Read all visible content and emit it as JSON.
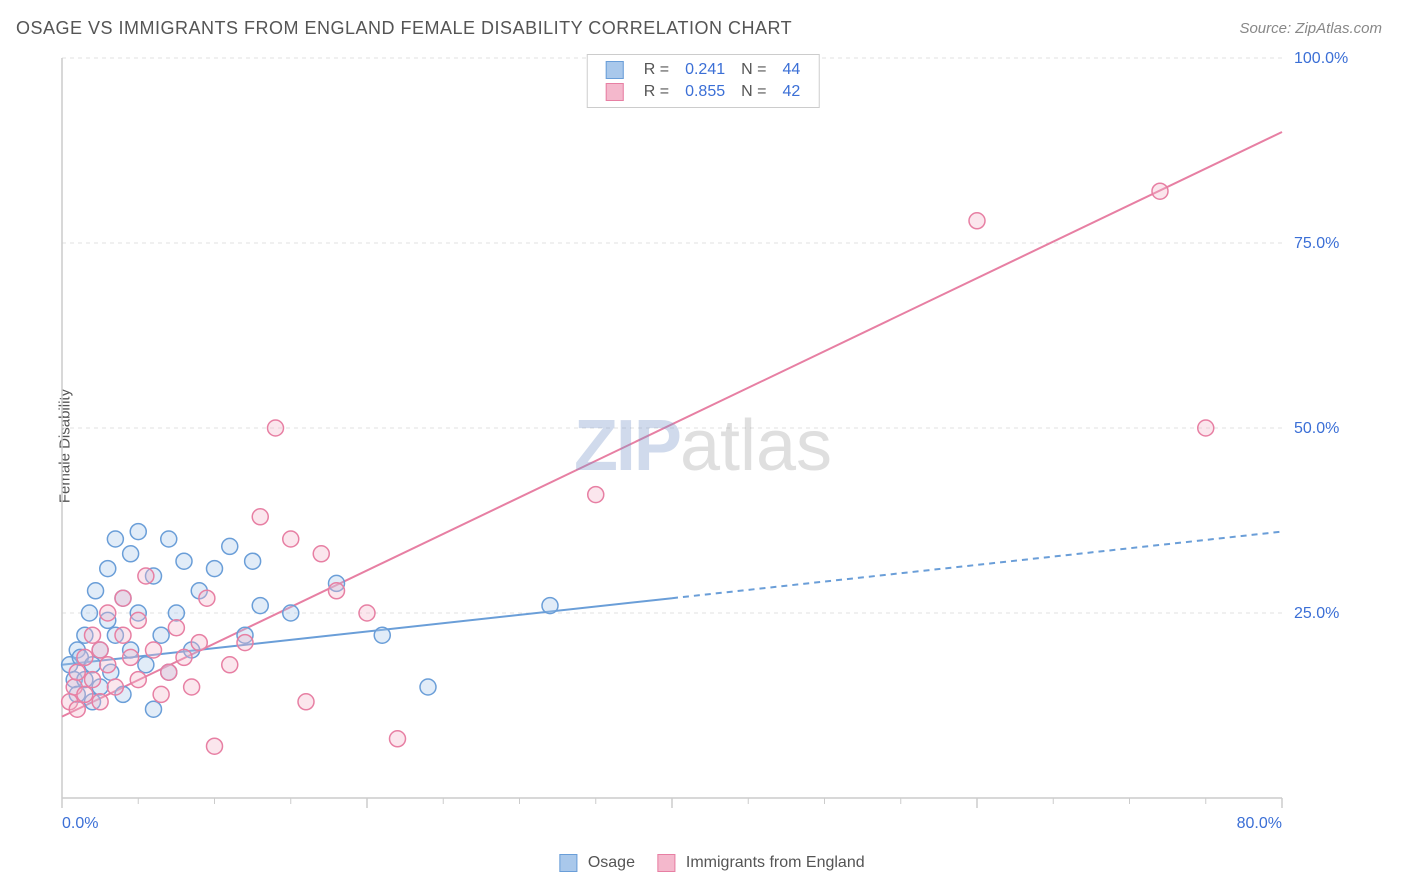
{
  "title": "OSAGE VS IMMIGRANTS FROM ENGLAND FEMALE DISABILITY CORRELATION CHART",
  "source": "Source: ZipAtlas.com",
  "ylabel": "Female Disability",
  "watermark": {
    "zip": "ZIP",
    "atlas": "atlas"
  },
  "chart": {
    "type": "scatter",
    "background_color": "#ffffff",
    "grid_color": "#e0e0e0",
    "axis_color": "#cccccc",
    "tick_color": "#cccccc",
    "xlim": [
      0,
      80
    ],
    "ylim": [
      0,
      100
    ],
    "x_ticks": [
      0,
      20,
      40,
      60,
      80
    ],
    "x_minor_ticks": [
      5,
      10,
      15,
      25,
      30,
      35,
      45,
      50,
      55,
      65,
      70,
      75
    ],
    "y_ticks": [
      25,
      50,
      75,
      100
    ],
    "x_tick_labels": {
      "0": "0.0%",
      "80": "80.0%"
    },
    "y_tick_labels": {
      "25": "25.0%",
      "50": "50.0%",
      "75": "75.0%",
      "100": "100.0%"
    },
    "label_color": "#3b6fd6",
    "label_fontsize": 16,
    "marker_radius": 8,
    "marker_stroke_width": 1.5,
    "marker_fill_opacity": 0.35,
    "line_width": 2,
    "dashed_pattern": "6,5",
    "series": [
      {
        "id": "osage",
        "label": "Osage",
        "color_stroke": "#6a9ed8",
        "color_fill": "#a9c8eb",
        "R": "0.241",
        "N": "44",
        "line": {
          "x1": 0,
          "y1": 18,
          "x2": 80,
          "y2": 36,
          "solid_until_x": 40
        },
        "points": [
          [
            0.5,
            18
          ],
          [
            0.8,
            16
          ],
          [
            1,
            20
          ],
          [
            1,
            14
          ],
          [
            1.2,
            19
          ],
          [
            1.5,
            22
          ],
          [
            1.5,
            16
          ],
          [
            1.8,
            25
          ],
          [
            2,
            18
          ],
          [
            2,
            13
          ],
          [
            2.2,
            28
          ],
          [
            2.5,
            20
          ],
          [
            2.5,
            15
          ],
          [
            3,
            31
          ],
          [
            3,
            24
          ],
          [
            3.2,
            17
          ],
          [
            3.5,
            35
          ],
          [
            3.5,
            22
          ],
          [
            4,
            27
          ],
          [
            4,
            14
          ],
          [
            4.5,
            33
          ],
          [
            4.5,
            20
          ],
          [
            5,
            36
          ],
          [
            5,
            25
          ],
          [
            5.5,
            18
          ],
          [
            6,
            30
          ],
          [
            6,
            12
          ],
          [
            6.5,
            22
          ],
          [
            7,
            35
          ],
          [
            7,
            17
          ],
          [
            7.5,
            25
          ],
          [
            8,
            32
          ],
          [
            8.5,
            20
          ],
          [
            9,
            28
          ],
          [
            10,
            31
          ],
          [
            11,
            34
          ],
          [
            12,
            22
          ],
          [
            12.5,
            32
          ],
          [
            13,
            26
          ],
          [
            15,
            25
          ],
          [
            18,
            29
          ],
          [
            21,
            22
          ],
          [
            24,
            15
          ],
          [
            32,
            26
          ]
        ]
      },
      {
        "id": "immigrants",
        "label": "Immigrants from England",
        "color_stroke": "#e77fa3",
        "color_fill": "#f4b8cc",
        "R": "0.855",
        "N": "42",
        "line": {
          "x1": 0,
          "y1": 11,
          "x2": 80,
          "y2": 90,
          "solid_until_x": 80
        },
        "points": [
          [
            0.5,
            13
          ],
          [
            0.8,
            15
          ],
          [
            1,
            17
          ],
          [
            1,
            12
          ],
          [
            1.5,
            19
          ],
          [
            1.5,
            14
          ],
          [
            2,
            22
          ],
          [
            2,
            16
          ],
          [
            2.5,
            20
          ],
          [
            2.5,
            13
          ],
          [
            3,
            25
          ],
          [
            3,
            18
          ],
          [
            3.5,
            15
          ],
          [
            4,
            22
          ],
          [
            4,
            27
          ],
          [
            4.5,
            19
          ],
          [
            5,
            16
          ],
          [
            5,
            24
          ],
          [
            5.5,
            30
          ],
          [
            6,
            20
          ],
          [
            6.5,
            14
          ],
          [
            7,
            17
          ],
          [
            7.5,
            23
          ],
          [
            8,
            19
          ],
          [
            8.5,
            15
          ],
          [
            9,
            21
          ],
          [
            9.5,
            27
          ],
          [
            10,
            7
          ],
          [
            11,
            18
          ],
          [
            12,
            21
          ],
          [
            13,
            38
          ],
          [
            14,
            50
          ],
          [
            15,
            35
          ],
          [
            16,
            13
          ],
          [
            17,
            33
          ],
          [
            18,
            28
          ],
          [
            20,
            25
          ],
          [
            22,
            8
          ],
          [
            35,
            41
          ],
          [
            60,
            78
          ],
          [
            72,
            82
          ],
          [
            75,
            50
          ]
        ]
      }
    ]
  },
  "legend_top": {
    "r_label": "R =",
    "n_label": "N ="
  }
}
